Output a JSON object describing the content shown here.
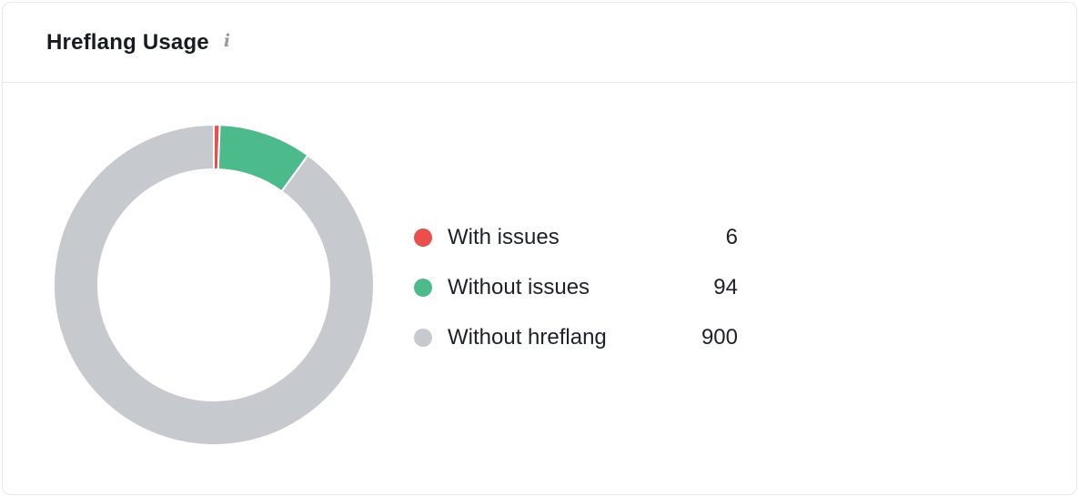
{
  "card": {
    "title": "Hreflang Usage",
    "info_icon": "i"
  },
  "chart_data": {
    "type": "pie",
    "title": "Hreflang Usage",
    "donut": true,
    "legend_position": "right",
    "start_angle_deg": -90,
    "direction": "clockwise",
    "total": 1000,
    "series": [
      {
        "label": "With issues",
        "value": 6,
        "color": "#e84f4d"
      },
      {
        "label": "Without issues",
        "value": 94,
        "color": "#4cba8b"
      },
      {
        "label": "Without hreflang",
        "value": 900,
        "color": "#c6c9ce"
      }
    ]
  }
}
